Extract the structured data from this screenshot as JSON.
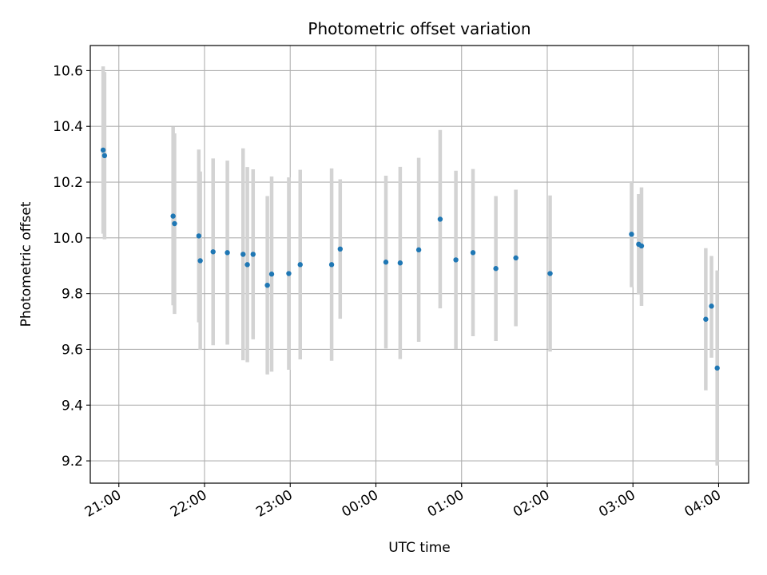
{
  "chart_data": {
    "type": "scatter",
    "title": "Photometric offset variation",
    "xlabel": "UTC time",
    "ylabel": "Photometric offset",
    "x_ticks": [
      "21:00",
      "22:00",
      "23:00",
      "00:00",
      "01:00",
      "02:00",
      "03:00",
      "04:00"
    ],
    "y_ticks": [
      "9.2",
      "9.4",
      "9.6",
      "9.8",
      "10.0",
      "10.2",
      "10.4",
      "10.6"
    ],
    "xlim": [
      "20:40",
      "04:21"
    ],
    "ylim": [
      9.12,
      10.69
    ],
    "grid": true,
    "colors": {
      "point": "#1f77b4",
      "errorbar": "#d3d3d3",
      "grid": "#b0b0b0"
    },
    "series": [
      {
        "points": [
          {
            "x": "20:49",
            "y": 10.315,
            "ylow": 10.015,
            "yhigh": 10.615
          },
          {
            "x": "20:50",
            "y": 10.295,
            "ylow": 9.995,
            "yhigh": 10.595
          },
          {
            "x": "21:38",
            "y": 10.078,
            "ylow": 9.758,
            "yhigh": 10.398
          },
          {
            "x": "21:39",
            "y": 10.051,
            "ylow": 9.727,
            "yhigh": 10.375
          },
          {
            "x": "21:56",
            "y": 10.007,
            "ylow": 9.697,
            "yhigh": 10.317
          },
          {
            "x": "21:57",
            "y": 9.918,
            "ylow": 9.598,
            "yhigh": 10.238
          },
          {
            "x": "22:06",
            "y": 9.95,
            "ylow": 9.615,
            "yhigh": 10.285
          },
          {
            "x": "22:16",
            "y": 9.947,
            "ylow": 9.617,
            "yhigh": 10.277
          },
          {
            "x": "22:27",
            "y": 9.941,
            "ylow": 9.561,
            "yhigh": 10.321
          },
          {
            "x": "22:30",
            "y": 9.904,
            "ylow": 9.554,
            "yhigh": 10.254
          },
          {
            "x": "22:34",
            "y": 9.941,
            "ylow": 9.636,
            "yhigh": 10.246
          },
          {
            "x": "22:44",
            "y": 9.83,
            "ylow": 9.51,
            "yhigh": 10.15
          },
          {
            "x": "22:47",
            "y": 9.87,
            "ylow": 9.52,
            "yhigh": 10.22
          },
          {
            "x": "22:59",
            "y": 9.872,
            "ylow": 9.527,
            "yhigh": 10.217
          },
          {
            "x": "23:07",
            "y": 9.904,
            "ylow": 9.564,
            "yhigh": 10.244
          },
          {
            "x": "23:29",
            "y": 9.904,
            "ylow": 9.559,
            "yhigh": 10.249
          },
          {
            "x": "23:35",
            "y": 9.96,
            "ylow": 9.71,
            "yhigh": 10.21
          },
          {
            "x": "00:07",
            "y": 9.913,
            "ylow": 9.603,
            "yhigh": 10.223
          },
          {
            "x": "00:17",
            "y": 9.91,
            "ylow": 9.565,
            "yhigh": 10.255
          },
          {
            "x": "00:30",
            "y": 9.957,
            "ylow": 9.627,
            "yhigh": 10.287
          },
          {
            "x": "00:45",
            "y": 10.067,
            "ylow": 9.747,
            "yhigh": 10.387
          },
          {
            "x": "00:56",
            "y": 9.921,
            "ylow": 9.601,
            "yhigh": 10.241
          },
          {
            "x": "01:08",
            "y": 9.947,
            "ylow": 9.647,
            "yhigh": 10.247
          },
          {
            "x": "01:24",
            "y": 9.89,
            "ylow": 9.63,
            "yhigh": 10.15
          },
          {
            "x": "01:38",
            "y": 9.928,
            "ylow": 9.683,
            "yhigh": 10.173
          },
          {
            "x": "02:02",
            "y": 9.872,
            "ylow": 9.592,
            "yhigh": 10.152
          },
          {
            "x": "02:59",
            "y": 10.013,
            "ylow": 9.823,
            "yhigh": 10.203
          },
          {
            "x": "03:04",
            "y": 9.977,
            "ylow": 9.797,
            "yhigh": 10.157
          },
          {
            "x": "03:06",
            "y": 9.971,
            "ylow": 9.756,
            "yhigh": 10.181
          },
          {
            "x": "03:51",
            "y": 9.708,
            "ylow": 9.453,
            "yhigh": 9.963
          },
          {
            "x": "03:55",
            "y": 9.755,
            "ylow": 9.57,
            "yhigh": 9.935
          },
          {
            "x": "03:59",
            "y": 9.533,
            "ylow": 9.183,
            "yhigh": 9.883
          }
        ]
      }
    ]
  }
}
